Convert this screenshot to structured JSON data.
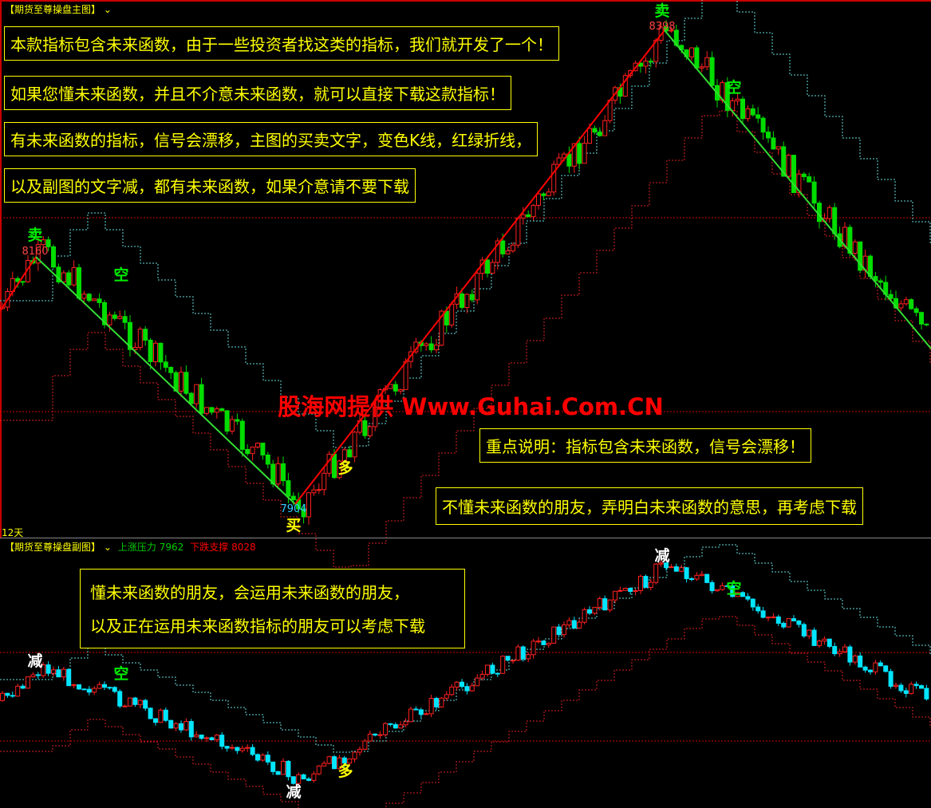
{
  "main_chart": {
    "title": "【期货至尊操盘主图】",
    "period_label": "12天",
    "sell_signals": [
      {
        "label": "卖",
        "price": "8160"
      },
      {
        "label": "卖",
        "price": "8398"
      }
    ],
    "buy_signal": {
      "label": "买",
      "price": "7904"
    },
    "short_labels": [
      "空",
      "空"
    ],
    "long_label": "多",
    "watermark": "股海网提供 Www.Guhai.Com.CN",
    "notes": [
      "本款指标包含未来函数，由于一些投资者找这类的指标，我们就开发了一个！",
      "如果您懂未来函数，并且不介意未来函数，就可以直接下载这款指标！",
      "有未来函数的指标，信号会漂移，主图的买卖文字，变色K线，红绿折线，",
      "以及副图的文字减，都有未来函数，如果介意请不要下载",
      "重点说明：指标包含未来函数，信号会漂移！",
      "不懂未来函数的朋友，弄明白未来函数的意思，再考虑下载"
    ]
  },
  "sub_chart": {
    "title": "【期货至尊操盘副图】",
    "resistance_label": "上涨压力",
    "resistance_value": "7962",
    "support_label": "下跌支撑",
    "support_value": "8028",
    "reduce_labels": [
      "减",
      "减",
      "减"
    ],
    "short_labels": [
      "空",
      "空"
    ],
    "long_label": "多",
    "notes": [
      "懂未来函数的朋友，会运用未来函数的朋友，",
      "以及正在运用未来函数指标的朋友可以考虑下载"
    ]
  },
  "colors": {
    "up": "#ff2020",
    "down_main": "#00dd00",
    "down_sub": "#00e5ff",
    "text": "#ffff00",
    "zigzag_up": "#ff0000",
    "zigzag_down": "#33dd33"
  }
}
